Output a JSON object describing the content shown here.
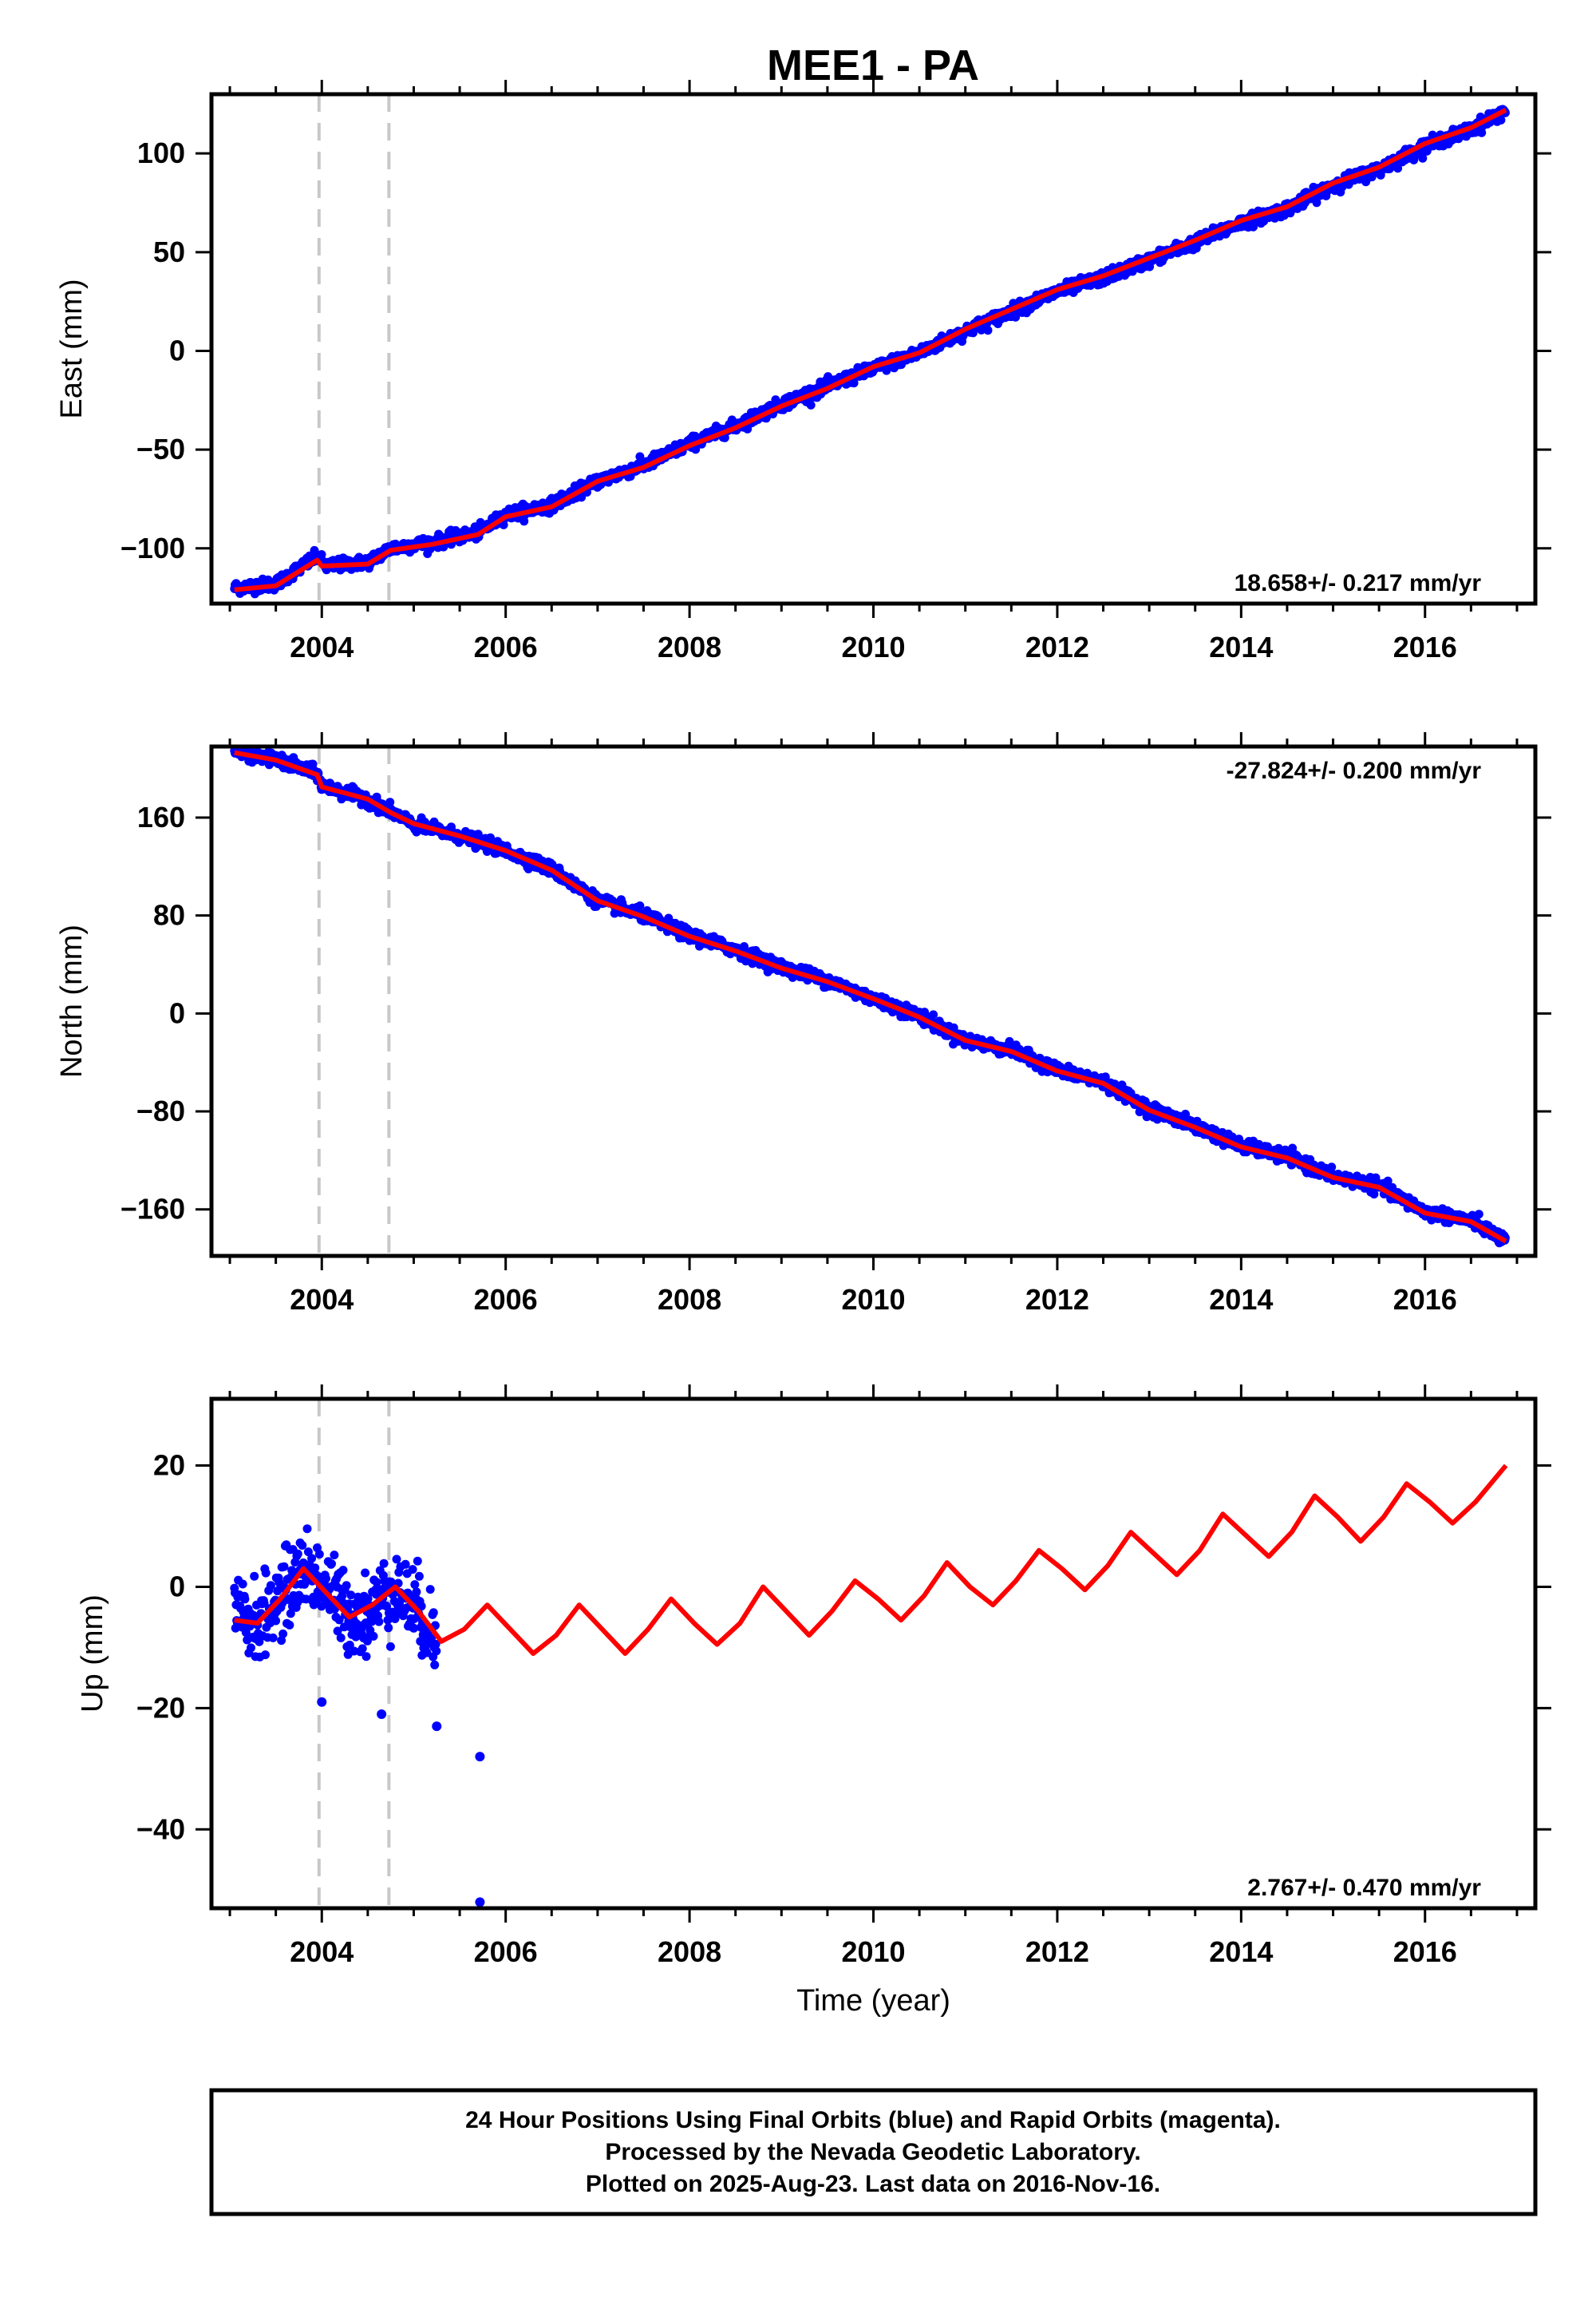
{
  "title": "MEE1 - PA",
  "colors": {
    "final_orbits": "#0000ff",
    "model": "#ff0000",
    "events": "#c8c8c8"
  },
  "footer": {
    "line1": "24 Hour Positions Using Final Orbits (blue) and Rapid Orbits (magenta).",
    "line2": "Processed by the Nevada Geodetic Laboratory.",
    "line3": "Plotted on 2025-Aug-23. Last data on 2016-Nov-16."
  },
  "chart_data": [
    {
      "type": "scatter",
      "ylabel": "East (mm)",
      "xlabel": "",
      "xlim": [
        2002.8,
        2017.2
      ],
      "ylim": [
        -128,
        130
      ],
      "x_ticks": [
        2004,
        2006,
        2008,
        2010,
        2012,
        2014,
        2016
      ],
      "y_ticks": [
        100,
        50,
        0,
        -50,
        -100
      ],
      "y_tick_labels": [
        "100",
        "50",
        "0",
        "−50",
        "−100"
      ],
      "rate_label": "18.658+/- 0.217 mm/yr",
      "rate_position": "bottom-right",
      "event_lines": [
        2003.97,
        2004.73
      ],
      "series": [
        {
          "role": "daily positions",
          "color": "#0000ff",
          "points": [
            [
              2003.05,
              -120
            ],
            [
              2003.5,
              -118
            ],
            [
              2003.95,
              -104
            ],
            [
              2004.05,
              -109
            ],
            [
              2004.5,
              -107
            ],
            [
              2004.75,
              -100
            ],
            [
              2005.2,
              -97
            ],
            [
              2005.7,
              -92
            ],
            [
              2006.0,
              -83
            ],
            [
              2006.5,
              -78
            ],
            [
              2007.0,
              -66
            ],
            [
              2007.5,
              -58
            ],
            [
              2008.0,
              -47
            ],
            [
              2008.5,
              -38
            ],
            [
              2009.0,
              -27
            ],
            [
              2009.5,
              -18
            ],
            [
              2010.0,
              -9
            ],
            [
              2010.5,
              -1
            ],
            [
              2011.0,
              10
            ],
            [
              2011.5,
              20
            ],
            [
              2012.0,
              30
            ],
            [
              2012.5,
              37
            ],
            [
              2013.0,
              46
            ],
            [
              2013.5,
              55
            ],
            [
              2014.0,
              65
            ],
            [
              2014.5,
              72
            ],
            [
              2015.0,
              84
            ],
            [
              2015.5,
              92
            ],
            [
              2016.0,
              104
            ],
            [
              2016.5,
              112
            ],
            [
              2016.88,
              122
            ]
          ]
        },
        {
          "role": "model fit",
          "color": "#ff0000",
          "points": [
            [
              2003.05,
              -121
            ],
            [
              2003.5,
              -119
            ],
            [
              2003.95,
              -106
            ],
            [
              2004.0,
              -109
            ],
            [
              2004.5,
              -108
            ],
            [
              2004.75,
              -101
            ],
            [
              2005.2,
              -98
            ],
            [
              2005.7,
              -93
            ],
            [
              2006.0,
              -84
            ],
            [
              2006.5,
              -79
            ],
            [
              2007.0,
              -66
            ],
            [
              2007.5,
              -59
            ],
            [
              2008.0,
              -48
            ],
            [
              2008.5,
              -39
            ],
            [
              2009.0,
              -28
            ],
            [
              2009.5,
              -19
            ],
            [
              2010.0,
              -8
            ],
            [
              2010.5,
              -1
            ],
            [
              2011.0,
              11
            ],
            [
              2011.5,
              21
            ],
            [
              2012.0,
              31
            ],
            [
              2012.5,
              38
            ],
            [
              2013.0,
              47
            ],
            [
              2013.5,
              56
            ],
            [
              2014.0,
              66
            ],
            [
              2014.5,
              73
            ],
            [
              2015.0,
              85
            ],
            [
              2015.5,
              93
            ],
            [
              2016.0,
              105
            ],
            [
              2016.5,
              113
            ],
            [
              2016.88,
              122
            ]
          ]
        }
      ]
    },
    {
      "type": "scatter",
      "ylabel": "North (mm)",
      "xlabel": "",
      "xlim": [
        2002.8,
        2017.2
      ],
      "ylim": [
        -198,
        218
      ],
      "x_ticks": [
        2004,
        2006,
        2008,
        2010,
        2012,
        2014,
        2016
      ],
      "y_ticks": [
        160,
        80,
        0,
        -80,
        -160
      ],
      "y_tick_labels": [
        "160",
        "80",
        "0",
        "−80",
        "−160"
      ],
      "rate_label": "-27.824+/- 0.200 mm/yr",
      "rate_position": "top-right",
      "event_lines": [
        2003.97,
        2004.73
      ],
      "series": [
        {
          "role": "daily positions",
          "color": "#0000ff",
          "points": [
            [
              2003.05,
              214
            ],
            [
              2003.5,
              207
            ],
            [
              2003.95,
              196
            ],
            [
              2004.0,
              186
            ],
            [
              2004.5,
              175
            ],
            [
              2004.75,
              165
            ],
            [
              2005.0,
              154
            ],
            [
              2005.5,
              145
            ],
            [
              2006.0,
              133
            ],
            [
              2006.5,
              118
            ],
            [
              2007.0,
              92
            ],
            [
              2007.5,
              80
            ],
            [
              2008.0,
              64
            ],
            [
              2008.5,
              52
            ],
            [
              2009.0,
              38
            ],
            [
              2009.5,
              27
            ],
            [
              2010.0,
              12
            ],
            [
              2010.5,
              -2
            ],
            [
              2011.0,
              -22
            ],
            [
              2011.5,
              -30
            ],
            [
              2012.0,
              -46
            ],
            [
              2012.5,
              -56
            ],
            [
              2013.0,
              -78
            ],
            [
              2013.5,
              -92
            ],
            [
              2014.0,
              -108
            ],
            [
              2014.5,
              -117
            ],
            [
              2015.0,
              -133
            ],
            [
              2015.5,
              -141
            ],
            [
              2016.0,
              -162
            ],
            [
              2016.5,
              -169
            ],
            [
              2016.88,
              -186
            ]
          ]
        },
        {
          "role": "model fit",
          "color": "#ff0000",
          "points": [
            [
              2003.05,
              213
            ],
            [
              2003.5,
              207
            ],
            [
              2003.95,
              195
            ],
            [
              2004.0,
              185
            ],
            [
              2004.5,
              175
            ],
            [
              2004.75,
              164
            ],
            [
              2005.0,
              155
            ],
            [
              2005.5,
              145
            ],
            [
              2006.0,
              133
            ],
            [
              2006.5,
              117
            ],
            [
              2007.0,
              92
            ],
            [
              2007.5,
              79
            ],
            [
              2008.0,
              63
            ],
            [
              2008.5,
              51
            ],
            [
              2009.0,
              37
            ],
            [
              2009.5,
              26
            ],
            [
              2010.0,
              12
            ],
            [
              2010.5,
              -3
            ],
            [
              2011.0,
              -22
            ],
            [
              2011.5,
              -31
            ],
            [
              2012.0,
              -47
            ],
            [
              2012.5,
              -57
            ],
            [
              2013.0,
              -79
            ],
            [
              2013.5,
              -93
            ],
            [
              2014.0,
              -109
            ],
            [
              2014.5,
              -118
            ],
            [
              2015.0,
              -134
            ],
            [
              2015.5,
              -142
            ],
            [
              2016.0,
              -163
            ],
            [
              2016.5,
              -170
            ],
            [
              2016.88,
              -186
            ]
          ]
        }
      ]
    },
    {
      "type": "scatter",
      "ylabel": "Up (mm)",
      "xlabel": "Time (year)",
      "xlim": [
        2002.8,
        2017.2
      ],
      "ylim": [
        -53,
        31
      ],
      "x_ticks": [
        2004,
        2006,
        2008,
        2010,
        2012,
        2014,
        2016
      ],
      "y_ticks": [
        20,
        0,
        -20,
        -40
      ],
      "y_tick_labels": [
        "20",
        "0",
        "−20",
        "−40"
      ],
      "rate_label": "2.767+/- 0.470 mm/yr",
      "rate_position": "bottom-right",
      "event_lines": [
        2003.97,
        2004.73
      ],
      "series": [
        {
          "role": "daily positions",
          "color": "#0000ff",
          "points": [
            [
              2003.05,
              -5
            ],
            [
              2003.3,
              -6
            ],
            [
              2003.6,
              -1
            ],
            [
              2003.8,
              3
            ],
            [
              2004.0,
              1
            ],
            [
              2004.25,
              -4
            ],
            [
              2004.5,
              -5
            ],
            [
              2004.75,
              0
            ],
            [
              2005.0,
              -3
            ],
            [
              2005.25,
              -9
            ],
            [
              2005.5,
              -8
            ],
            [
              2005.8,
              -3
            ],
            [
              2006.0,
              -6
            ],
            [
              2006.25,
              -10
            ],
            [
              2006.5,
              -8
            ],
            [
              2006.8,
              -3
            ],
            [
              2007.0,
              -6
            ],
            [
              2007.25,
              -10
            ],
            [
              2007.5,
              -7
            ],
            [
              2007.8,
              -2
            ],
            [
              2008.0,
              -5
            ],
            [
              2008.25,
              -9
            ],
            [
              2008.5,
              -6
            ],
            [
              2008.8,
              0
            ],
            [
              2009.0,
              -3
            ],
            [
              2009.25,
              -7
            ],
            [
              2009.5,
              -4
            ],
            [
              2009.8,
              1
            ],
            [
              2010.0,
              -2
            ],
            [
              2010.25,
              -5
            ],
            [
              2010.5,
              -2
            ],
            [
              2010.8,
              4
            ],
            [
              2011.0,
              1
            ],
            [
              2011.25,
              -3
            ],
            [
              2011.5,
              -1
            ],
            [
              2011.8,
              6
            ],
            [
              2012.0,
              3
            ],
            [
              2012.25,
              0
            ],
            [
              2012.5,
              2
            ],
            [
              2012.8,
              9
            ],
            [
              2013.0,
              6
            ],
            [
              2013.25,
              2
            ],
            [
              2013.5,
              5
            ],
            [
              2013.8,
              12
            ],
            [
              2014.0,
              9
            ],
            [
              2014.25,
              5
            ],
            [
              2014.5,
              8
            ],
            [
              2014.8,
              15
            ],
            [
              2015.0,
              12
            ],
            [
              2015.25,
              8
            ],
            [
              2015.5,
              11
            ],
            [
              2015.8,
              17
            ],
            [
              2016.0,
              14
            ],
            [
              2016.25,
              10
            ],
            [
              2016.5,
              13
            ],
            [
              2016.85,
              20
            ],
            [
              2005.72,
              -28
            ],
            [
              2005.72,
              -52
            ],
            [
              2004.0,
              -19
            ],
            [
              2004.65,
              -21
            ],
            [
              2005.25,
              -23
            ]
          ]
        },
        {
          "role": "model fit",
          "color": "#ff0000",
          "points": [
            [
              2003.05,
              -5.5
            ],
            [
              2003.3,
              -6
            ],
            [
              2003.55,
              -2
            ],
            [
              2003.8,
              3
            ],
            [
              2004.05,
              -1
            ],
            [
              2004.3,
              -5
            ],
            [
              2004.55,
              -3
            ],
            [
              2004.8,
              0
            ],
            [
              2005.05,
              -4
            ],
            [
              2005.3,
              -9
            ],
            [
              2005.55,
              -7
            ],
            [
              2005.8,
              -3
            ],
            [
              2006.05,
              -7
            ],
            [
              2006.3,
              -11
            ],
            [
              2006.55,
              -8
            ],
            [
              2006.8,
              -3
            ],
            [
              2007.05,
              -7
            ],
            [
              2007.3,
              -11
            ],
            [
              2007.55,
              -7
            ],
            [
              2007.8,
              -2
            ],
            [
              2008.05,
              -6
            ],
            [
              2008.3,
              -9.5
            ],
            [
              2008.55,
              -6
            ],
            [
              2008.8,
              0
            ],
            [
              2009.05,
              -4
            ],
            [
              2009.3,
              -8
            ],
            [
              2009.55,
              -4
            ],
            [
              2009.8,
              1
            ],
            [
              2010.05,
              -2
            ],
            [
              2010.3,
              -5.5
            ],
            [
              2010.55,
              -1.5
            ],
            [
              2010.8,
              4
            ],
            [
              2011.05,
              0
            ],
            [
              2011.3,
              -3
            ],
            [
              2011.55,
              1
            ],
            [
              2011.8,
              6
            ],
            [
              2012.05,
              3
            ],
            [
              2012.3,
              -0.5
            ],
            [
              2012.55,
              3.5
            ],
            [
              2012.8,
              9
            ],
            [
              2013.05,
              5.5
            ],
            [
              2013.3,
              2
            ],
            [
              2013.55,
              6
            ],
            [
              2013.8,
              12
            ],
            [
              2014.05,
              8.5
            ],
            [
              2014.3,
              5
            ],
            [
              2014.55,
              9
            ],
            [
              2014.8,
              15
            ],
            [
              2015.05,
              11.5
            ],
            [
              2015.3,
              7.5
            ],
            [
              2015.55,
              11.5
            ],
            [
              2015.8,
              17
            ],
            [
              2016.05,
              14
            ],
            [
              2016.3,
              10.5
            ],
            [
              2016.55,
              14
            ],
            [
              2016.88,
              20
            ]
          ]
        }
      ]
    }
  ]
}
